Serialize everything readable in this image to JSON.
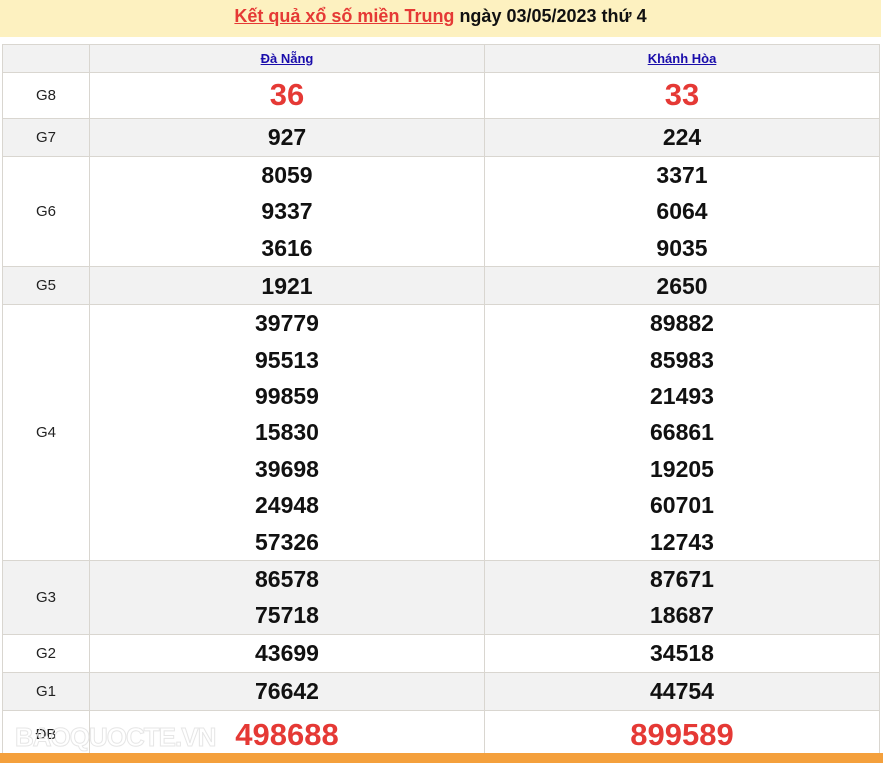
{
  "title": {
    "link": "Kết quả xổ số miền Trung",
    "rest": " ngày 03/05/2023 thứ 4"
  },
  "provinces": [
    "Đà Nẵng",
    "Khánh Hòa"
  ],
  "prizes": [
    {
      "label": "G8",
      "values": [
        [
          "36"
        ],
        [
          "33"
        ]
      ],
      "red": true
    },
    {
      "label": "G7",
      "values": [
        [
          "927"
        ],
        [
          "224"
        ]
      ]
    },
    {
      "label": "G6",
      "values": [
        [
          "8059",
          "9337",
          "3616"
        ],
        [
          "3371",
          "6064",
          "9035"
        ]
      ]
    },
    {
      "label": "G5",
      "values": [
        [
          "1921"
        ],
        [
          "2650"
        ]
      ]
    },
    {
      "label": "G4",
      "values": [
        [
          "39779",
          "95513",
          "99859",
          "15830",
          "39698",
          "24948",
          "57326"
        ],
        [
          "89882",
          "85983",
          "21493",
          "66861",
          "19205",
          "60701",
          "12743"
        ]
      ]
    },
    {
      "label": "G3",
      "values": [
        [
          "86578",
          "75718"
        ],
        [
          "87671",
          "18687"
        ]
      ]
    },
    {
      "label": "G2",
      "values": [
        [
          "43699"
        ],
        [
          "34518"
        ]
      ]
    },
    {
      "label": "G1",
      "values": [
        [
          "76642"
        ],
        [
          "44754"
        ]
      ]
    },
    {
      "label": "ĐB",
      "values": [
        [
          "498688"
        ],
        [
          "899589"
        ]
      ],
      "red": true
    }
  ],
  "watermark": "BAOQUOCTE.VN",
  "colors": {
    "accent": "#e53935",
    "banner": "#fdf1c0",
    "footer": "#f4a03c"
  }
}
